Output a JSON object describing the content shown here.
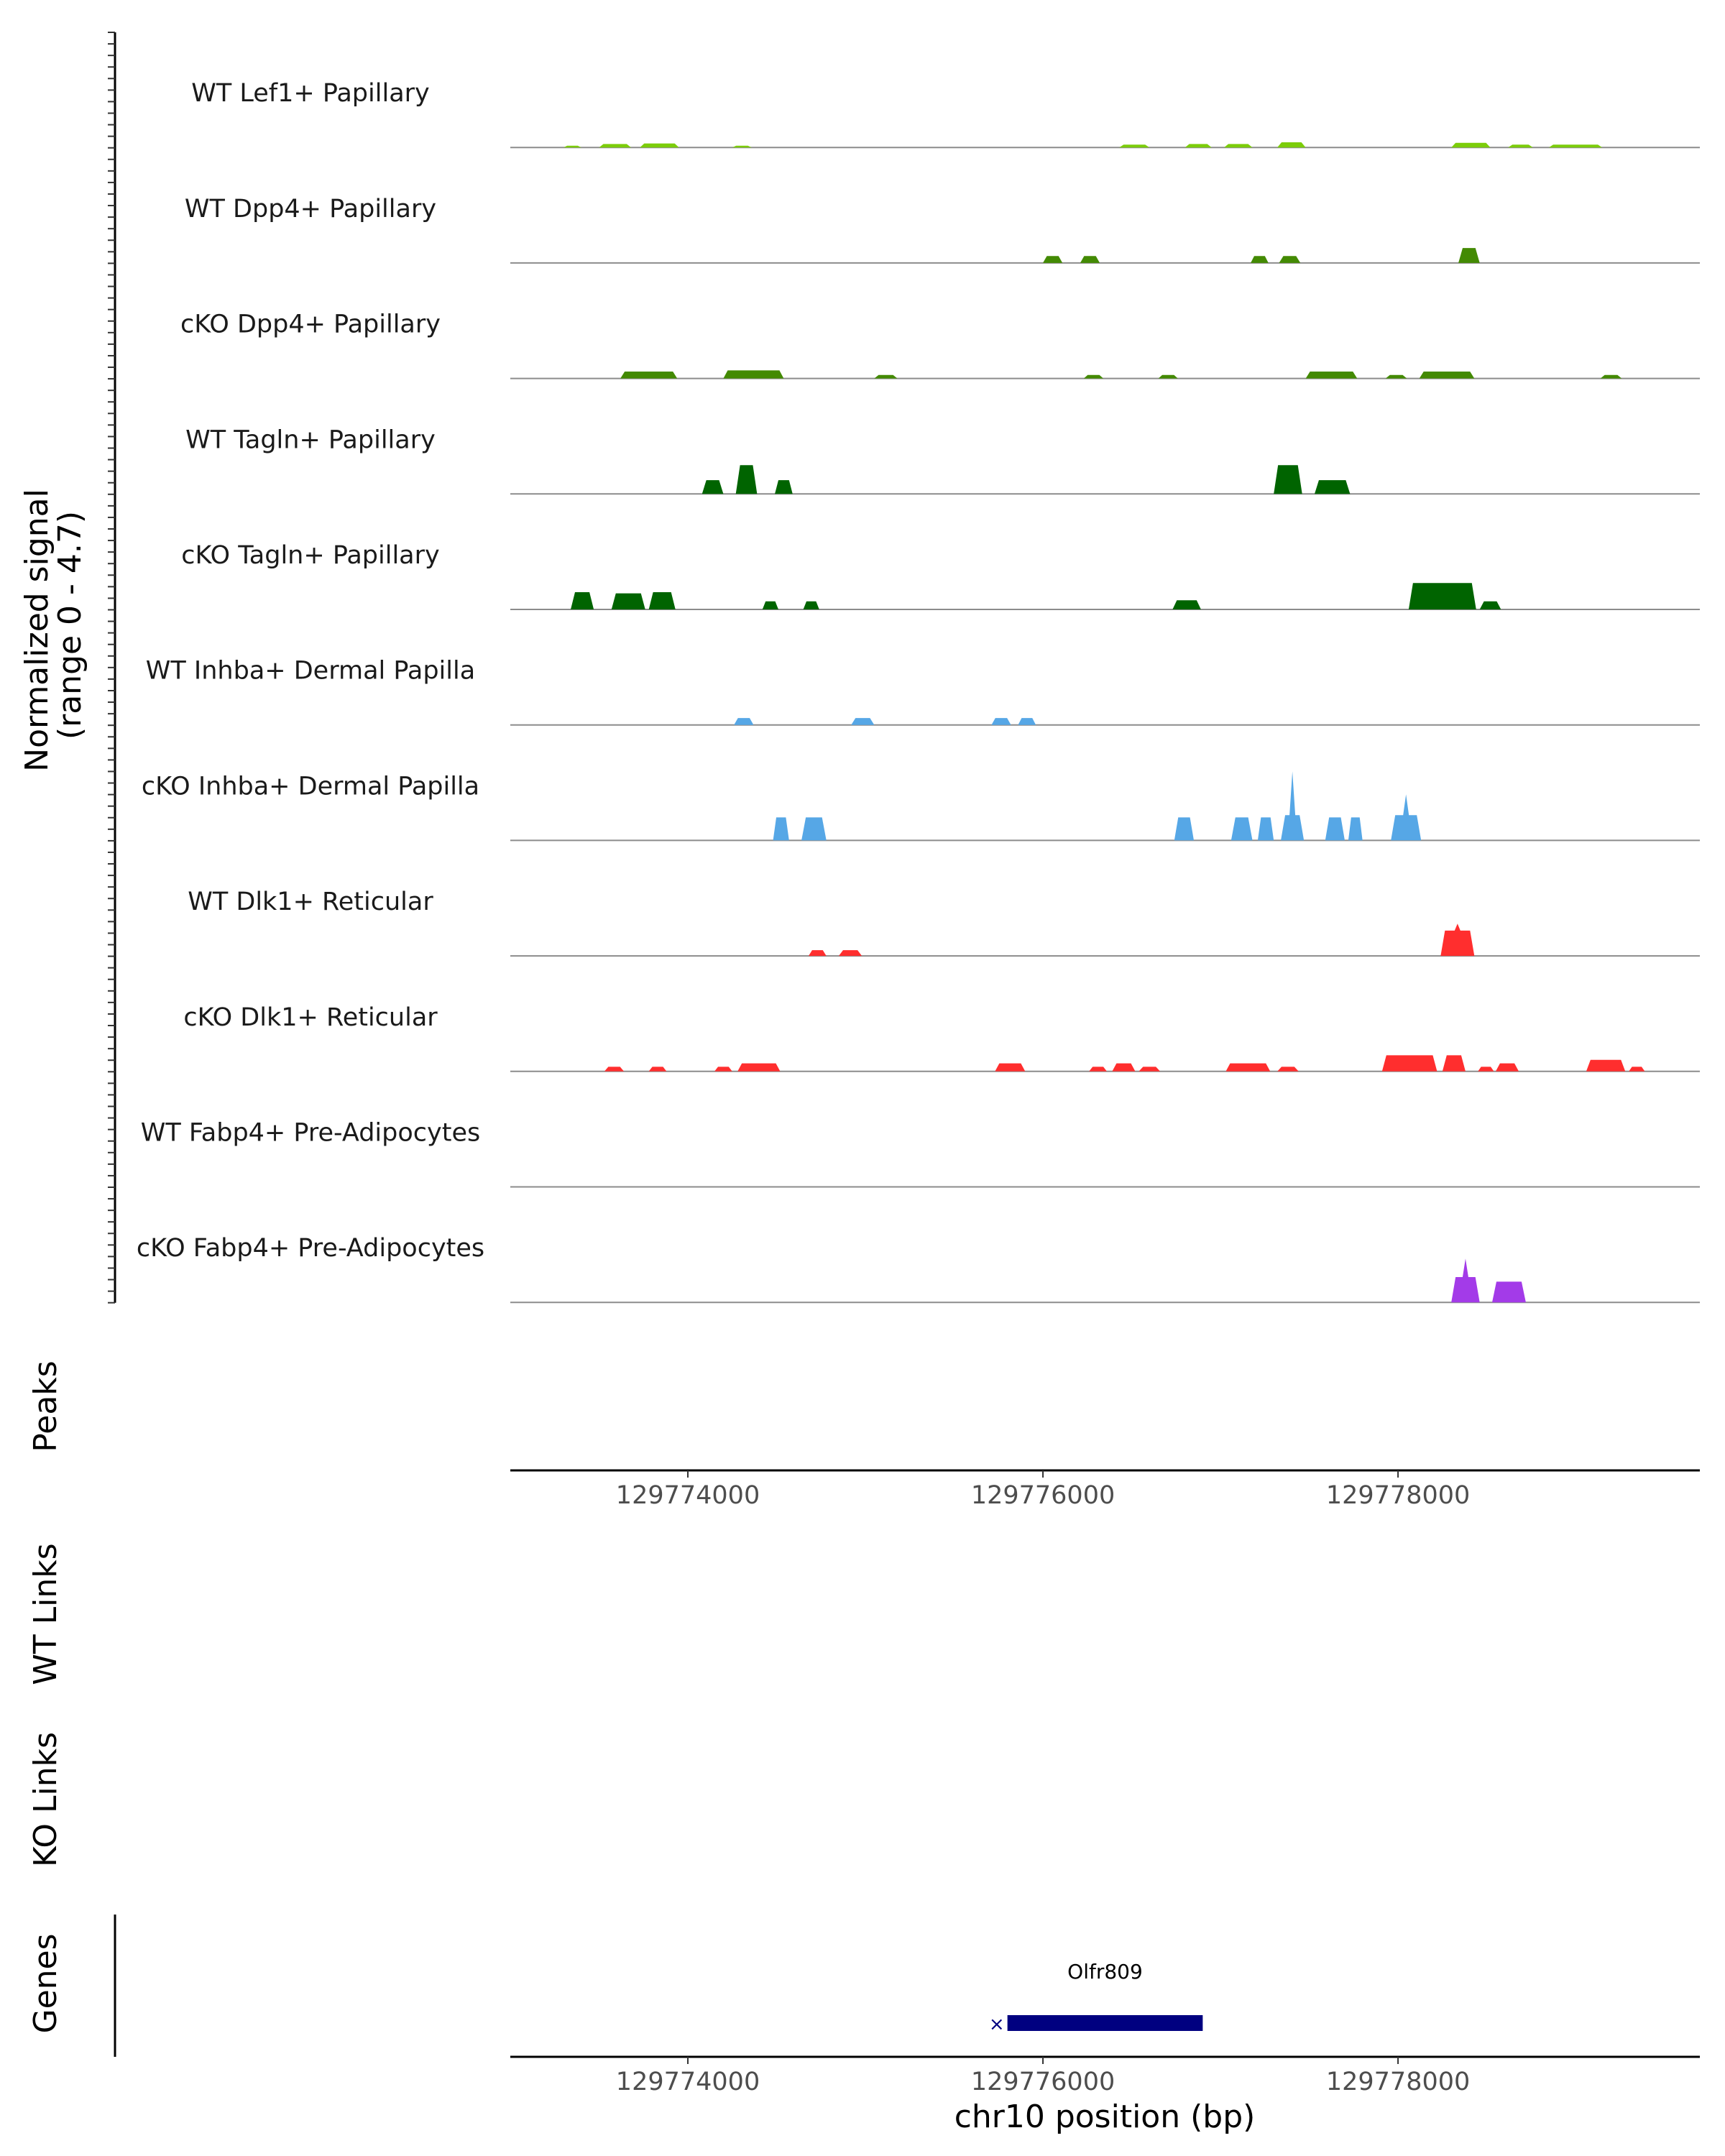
{
  "chart_data": {
    "type": "area",
    "region": {
      "chrom": "chr10",
      "start": 129773000,
      "end": 129779700
    },
    "y_axis_title": [
      "Normalized signal",
      "(range 0 - 4.7)"
    ],
    "ylim": [
      0,
      4.7
    ],
    "x_ticks": [
      129774000,
      129776000,
      129778000
    ],
    "x_tick_labels": [
      "129774000",
      "129776000",
      "129778000"
    ],
    "xlabel": "chr10 position (bp)",
    "tracks": [
      {
        "name": "WT Lef1+ Papillary",
        "color": "#7ccd0a",
        "peaks": [
          [
            129773300,
            129773400,
            0.15
          ],
          [
            129773500,
            129773680,
            0.3
          ],
          [
            129773730,
            129773950,
            0.35
          ],
          [
            129774250,
            129774360,
            0.15
          ],
          [
            129776430,
            129776600,
            0.25
          ],
          [
            129776800,
            129776950,
            0.3
          ],
          [
            129777020,
            129777180,
            0.3
          ],
          [
            129777320,
            129777480,
            0.45
          ],
          [
            129778300,
            129778520,
            0.4
          ],
          [
            129778620,
            129778760,
            0.25
          ],
          [
            129778850,
            129779150,
            0.25
          ]
        ]
      },
      {
        "name": "WT Dpp4+ Papillary",
        "color": "#438a03",
        "peaks": [
          [
            129776000,
            129776110,
            0.6
          ],
          [
            129776210,
            129776320,
            0.6
          ],
          [
            129777170,
            129777270,
            0.6
          ],
          [
            129777330,
            129777450,
            0.6
          ],
          [
            129778340,
            129778460,
            1.3
          ]
        ]
      },
      {
        "name": "cKO Dpp4+ Papillary",
        "color": "#438a03",
        "peaks": [
          [
            129773620,
            129773940,
            0.6
          ],
          [
            129774200,
            129774540,
            0.7
          ],
          [
            129775050,
            129775180,
            0.3
          ],
          [
            129776230,
            129776340,
            0.3
          ],
          [
            129776650,
            129776760,
            0.3
          ],
          [
            129777480,
            129777770,
            0.6
          ],
          [
            129777930,
            129778050,
            0.3
          ],
          [
            129778120,
            129778430,
            0.6
          ],
          [
            129779140,
            129779260,
            0.3
          ]
        ]
      },
      {
        "name": "WT Tagln+ Papillary",
        "color": "#006400",
        "peaks": [
          [
            129774080,
            129774200,
            1.2
          ],
          [
            129774270,
            129774390,
            2.5
          ],
          [
            129774490,
            129774590,
            1.2
          ],
          [
            129777300,
            129777460,
            2.5
          ],
          [
            129777530,
            129777730,
            1.2
          ]
        ]
      },
      {
        "name": "cKO Tagln+ Papillary",
        "color": "#006400",
        "peaks": [
          [
            129773340,
            129773470,
            1.5
          ],
          [
            129773570,
            129773760,
            1.4
          ],
          [
            129773780,
            129773930,
            1.5
          ],
          [
            129774420,
            129774510,
            0.7
          ],
          [
            129774650,
            129774740,
            0.7
          ],
          [
            129776730,
            129776890,
            0.8
          ],
          [
            129778060,
            129778440,
            2.3
          ],
          [
            129778460,
            129778580,
            0.7
          ]
        ]
      },
      {
        "name": "WT Inhba+ Dermal Papilla",
        "color": "#56a7e6",
        "peaks": [
          [
            129774260,
            129774370,
            0.6
          ],
          [
            129774920,
            129775050,
            0.6
          ],
          [
            129775710,
            129775820,
            0.6
          ],
          [
            129775860,
            129775960,
            0.6
          ]
        ]
      },
      {
        "name": "cKO Inhba+ Dermal Papilla",
        "color": "#56a7e6",
        "peaks": [
          [
            129774480,
            129774570,
            2.0
          ],
          [
            129774640,
            129774780,
            2.0
          ],
          [
            129776740,
            129776850,
            2.0
          ],
          [
            129777060,
            129777180,
            2.0
          ],
          [
            129777210,
            129777300,
            2.0
          ],
          [
            129777340,
            129777470,
            6.0
          ],
          [
            129777590,
            129777700,
            2.0
          ],
          [
            129777720,
            129777800,
            2.0
          ],
          [
            129777960,
            129778130,
            4.0
          ]
        ]
      },
      {
        "name": "WT Dlk1+ Reticular",
        "color": "#ff2e2e",
        "peaks": [
          [
            129774680,
            129774780,
            0.5
          ],
          [
            129774850,
            129774980,
            0.5
          ],
          [
            129778240,
            129778430,
            2.8
          ]
        ]
      },
      {
        "name": "cKO Dlk1+ Reticular",
        "color": "#ff2e2e",
        "peaks": [
          [
            129773530,
            129773640,
            0.4
          ],
          [
            129773780,
            129773880,
            0.4
          ],
          [
            129774150,
            129774250,
            0.4
          ],
          [
            129774280,
            129774520,
            0.7
          ],
          [
            129775730,
            129775900,
            0.7
          ],
          [
            129776260,
            129776360,
            0.4
          ],
          [
            129776390,
            129776520,
            0.7
          ],
          [
            129776540,
            129776660,
            0.4
          ],
          [
            129777030,
            129777280,
            0.7
          ],
          [
            129777320,
            129777440,
            0.4
          ],
          [
            129777910,
            129778220,
            1.4
          ],
          [
            129778250,
            129778380,
            1.4
          ],
          [
            129778450,
            129778540,
            0.4
          ],
          [
            129778550,
            129778680,
            0.7
          ],
          [
            129779060,
            129779280,
            1.0
          ],
          [
            129779300,
            129779390,
            0.4
          ]
        ]
      },
      {
        "name": "WT Fabp4+ Pre-Adipocytes",
        "color": "#a33be8",
        "peaks": []
      },
      {
        "name": "cKO Fabp4+ Pre-Adipocytes",
        "color": "#a33be8",
        "peaks": [
          [
            129778300,
            129778460,
            3.8
          ],
          [
            129778530,
            129778720,
            1.8
          ]
        ]
      }
    ],
    "panels": {
      "peaks": "Peaks",
      "wt_links": "WT Links",
      "ko_links": "KO Links",
      "genes": "Genes"
    },
    "genes": [
      {
        "name": "Olfr809",
        "start": 129775800,
        "end": 129776900,
        "strand": "-",
        "color": "#000080"
      }
    ]
  }
}
